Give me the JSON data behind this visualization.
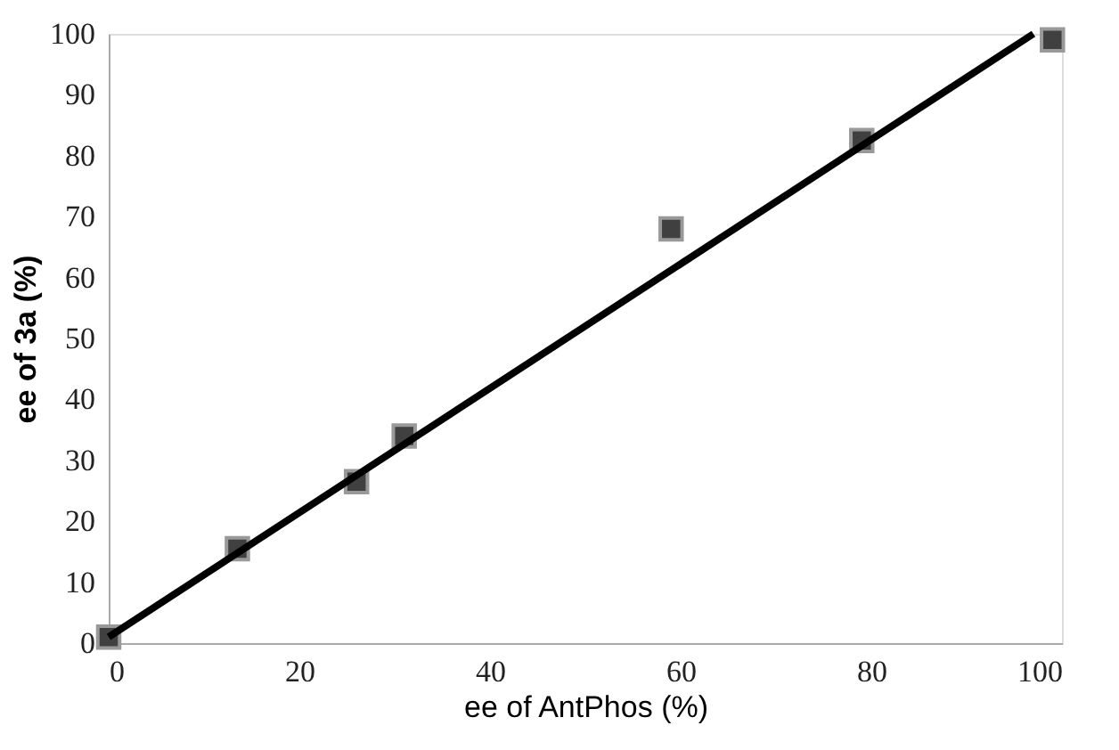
{
  "chart_data": {
    "type": "scatter",
    "xlabel": "ee of AntPhos (%)",
    "ylabel": "ee of 3a (%)",
    "xlim": [
      0,
      100
    ],
    "ylim": [
      0,
      100
    ],
    "xticks": [
      0,
      20,
      40,
      60,
      80,
      100
    ],
    "yticks": [
      0,
      10,
      20,
      30,
      40,
      50,
      60,
      70,
      80,
      90,
      100
    ],
    "grid": false,
    "series": [
      {
        "color": "#404040",
        "marker": "square",
        "x": [
          0,
          13.5,
          26,
          31,
          59,
          79,
          99
        ],
        "values": [
          1,
          15.5,
          26.5,
          34,
          68,
          82.5,
          99
        ]
      },
      {
        "type": "line",
        "color": "#000000",
        "marker": "none",
        "line_style": "solid",
        "x": [
          0,
          97
        ],
        "values": [
          1,
          100
        ]
      }
    ]
  }
}
